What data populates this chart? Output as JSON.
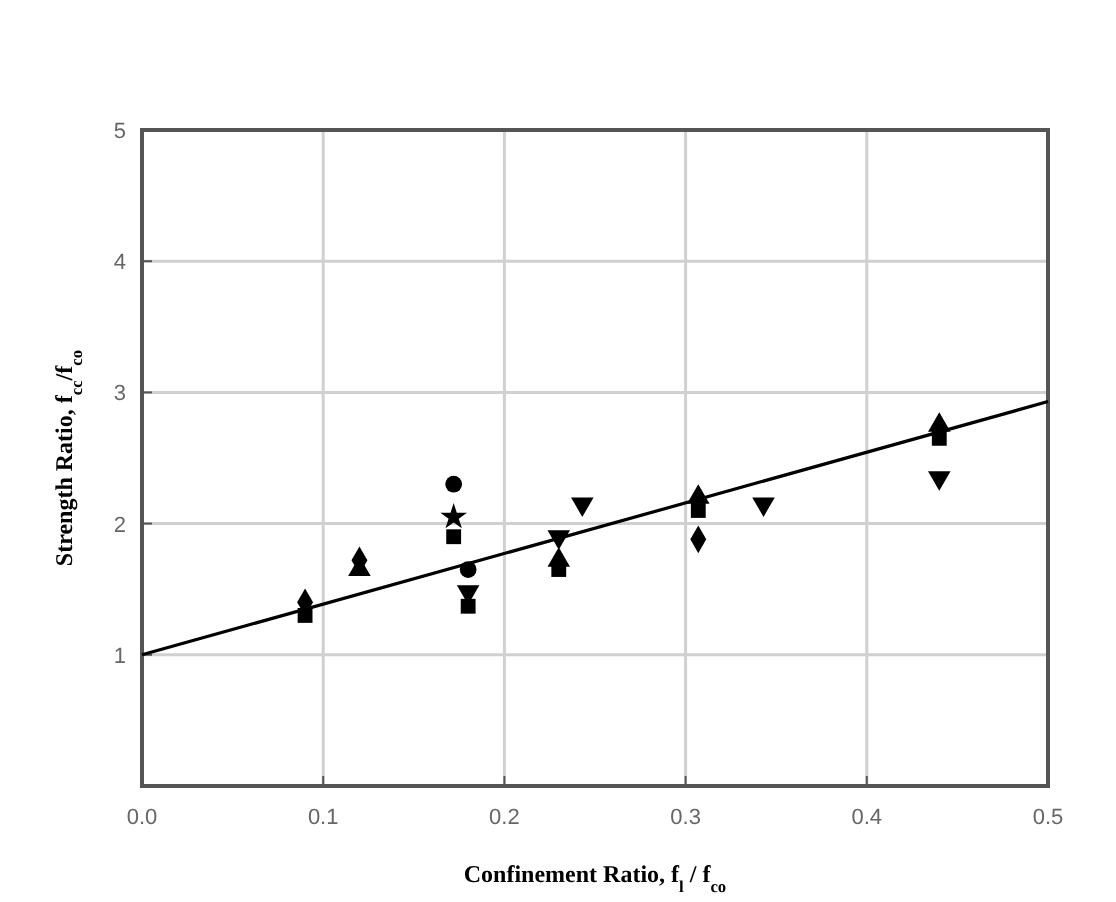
{
  "chart_data": {
    "type": "scatter",
    "xlabel": "Confinement Ratio, f$_{l}$ / f$_{co}$",
    "ylabel": "Strength Ratio, f$_{cc}$/f$_{co}$",
    "xlim": [
      0,
      0.5
    ],
    "ylim": [
      0,
      5
    ],
    "xticks": [
      {
        "value": 0,
        "label": "0.0"
      },
      0.1,
      0.2,
      0.3,
      0.4,
      0.5
    ],
    "yticks": [
      {
        "value": 0,
        "label": null
      },
      1,
      2,
      3,
      4,
      5
    ],
    "grid": true,
    "series": [
      {
        "color": "#000000",
        "marker": "circle",
        "x": [
          0.172,
          0.18
        ],
        "values": [
          2.3,
          1.65
        ]
      },
      {
        "color": "#000000",
        "marker": "diamond",
        "x": [
          0.09,
          0.12,
          0.307
        ],
        "values": [
          1.4,
          1.72,
          1.88
        ]
      },
      {
        "color": "#000000",
        "marker": "triangle",
        "x": [
          0.12,
          0.23,
          0.307,
          0.44
        ],
        "values": [
          1.65,
          1.72,
          2.2,
          2.75
        ]
      },
      {
        "color": "#000000",
        "marker": "square",
        "x": [
          0.09,
          0.172,
          0.18,
          0.23,
          0.307,
          0.44
        ],
        "values": [
          1.3,
          1.9,
          1.37,
          1.65,
          2.1,
          2.65
        ]
      },
      {
        "color": "#000000",
        "marker": "triangle-down",
        "x": [
          0.18,
          0.23,
          0.243,
          0.343,
          0.44
        ],
        "values": [
          1.48,
          1.9,
          2.15,
          2.15,
          2.35
        ]
      },
      {
        "color": "#000000",
        "marker": "star",
        "x": [
          0.172
        ],
        "values": [
          2.05
        ]
      },
      {
        "type": "line",
        "color": "#000000",
        "marker": "none",
        "line_style": "solid",
        "x": [
          0,
          0.5
        ],
        "values": [
          1,
          2.93
        ]
      }
    ]
  }
}
